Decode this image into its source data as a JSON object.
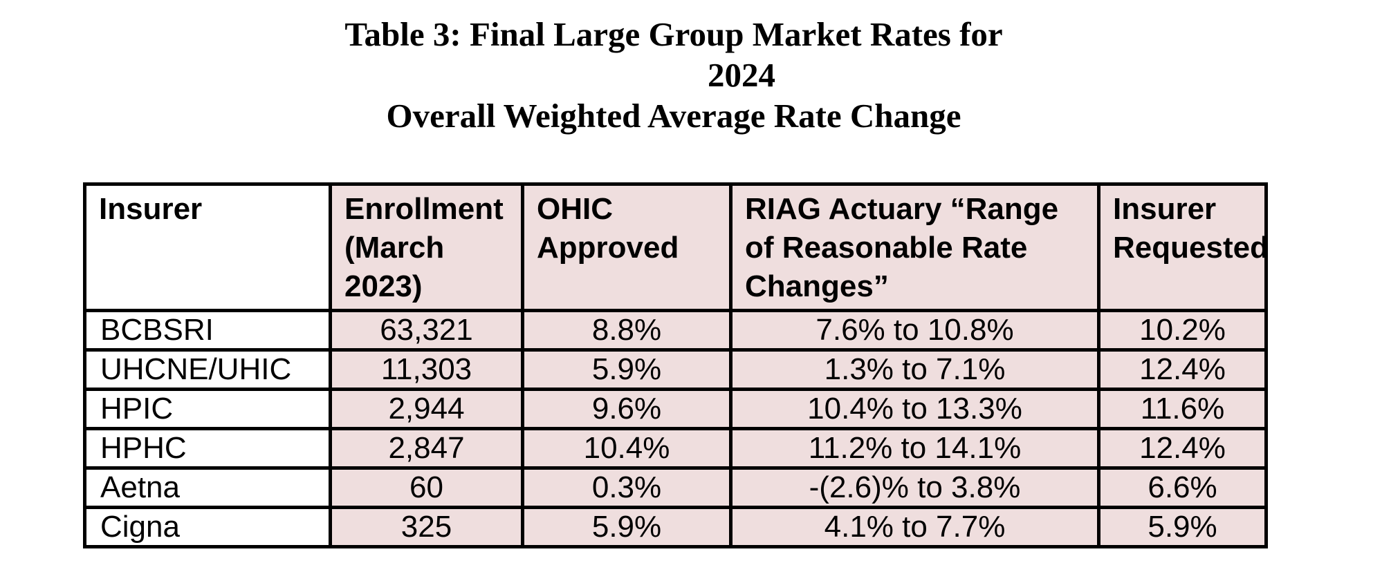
{
  "title": {
    "line1": "Table 3: Final Large Group Market Rates for",
    "line2": "2024",
    "line3": "Overall Weighted Average Rate Change"
  },
  "table": {
    "columns": [
      "Insurer",
      "Enrollment (March 2023)",
      "OHIC Approved",
      "RIAG Actuary “Range of Reasonable Rate Changes”",
      "Insurer Requested"
    ],
    "rows": [
      [
        "BCBSRI",
        "63,321",
        "8.8%",
        "7.6% to 10.8%",
        "10.2%"
      ],
      [
        "UHCNE/UHIC",
        "11,303",
        "5.9%",
        "1.3% to 7.1%",
        "12.4%"
      ],
      [
        "HPIC",
        "2,944",
        "9.6%",
        "10.4% to 13.3%",
        "11.6%"
      ],
      [
        "HPHC",
        "2,847",
        "10.4%",
        "11.2% to 14.1%",
        "12.4%"
      ],
      [
        "Aetna",
        "60",
        "0.3%",
        "-(2.6)% to 3.8%",
        "6.6%"
      ],
      [
        "Cigna",
        "325",
        "5.9%",
        "4.1% to 7.7%",
        "5.9%"
      ]
    ]
  },
  "colors": {
    "cell_fill": "#efdede",
    "insurer_column_fill": "#ffffff",
    "table_border": "#000000",
    "text": "#000000"
  }
}
